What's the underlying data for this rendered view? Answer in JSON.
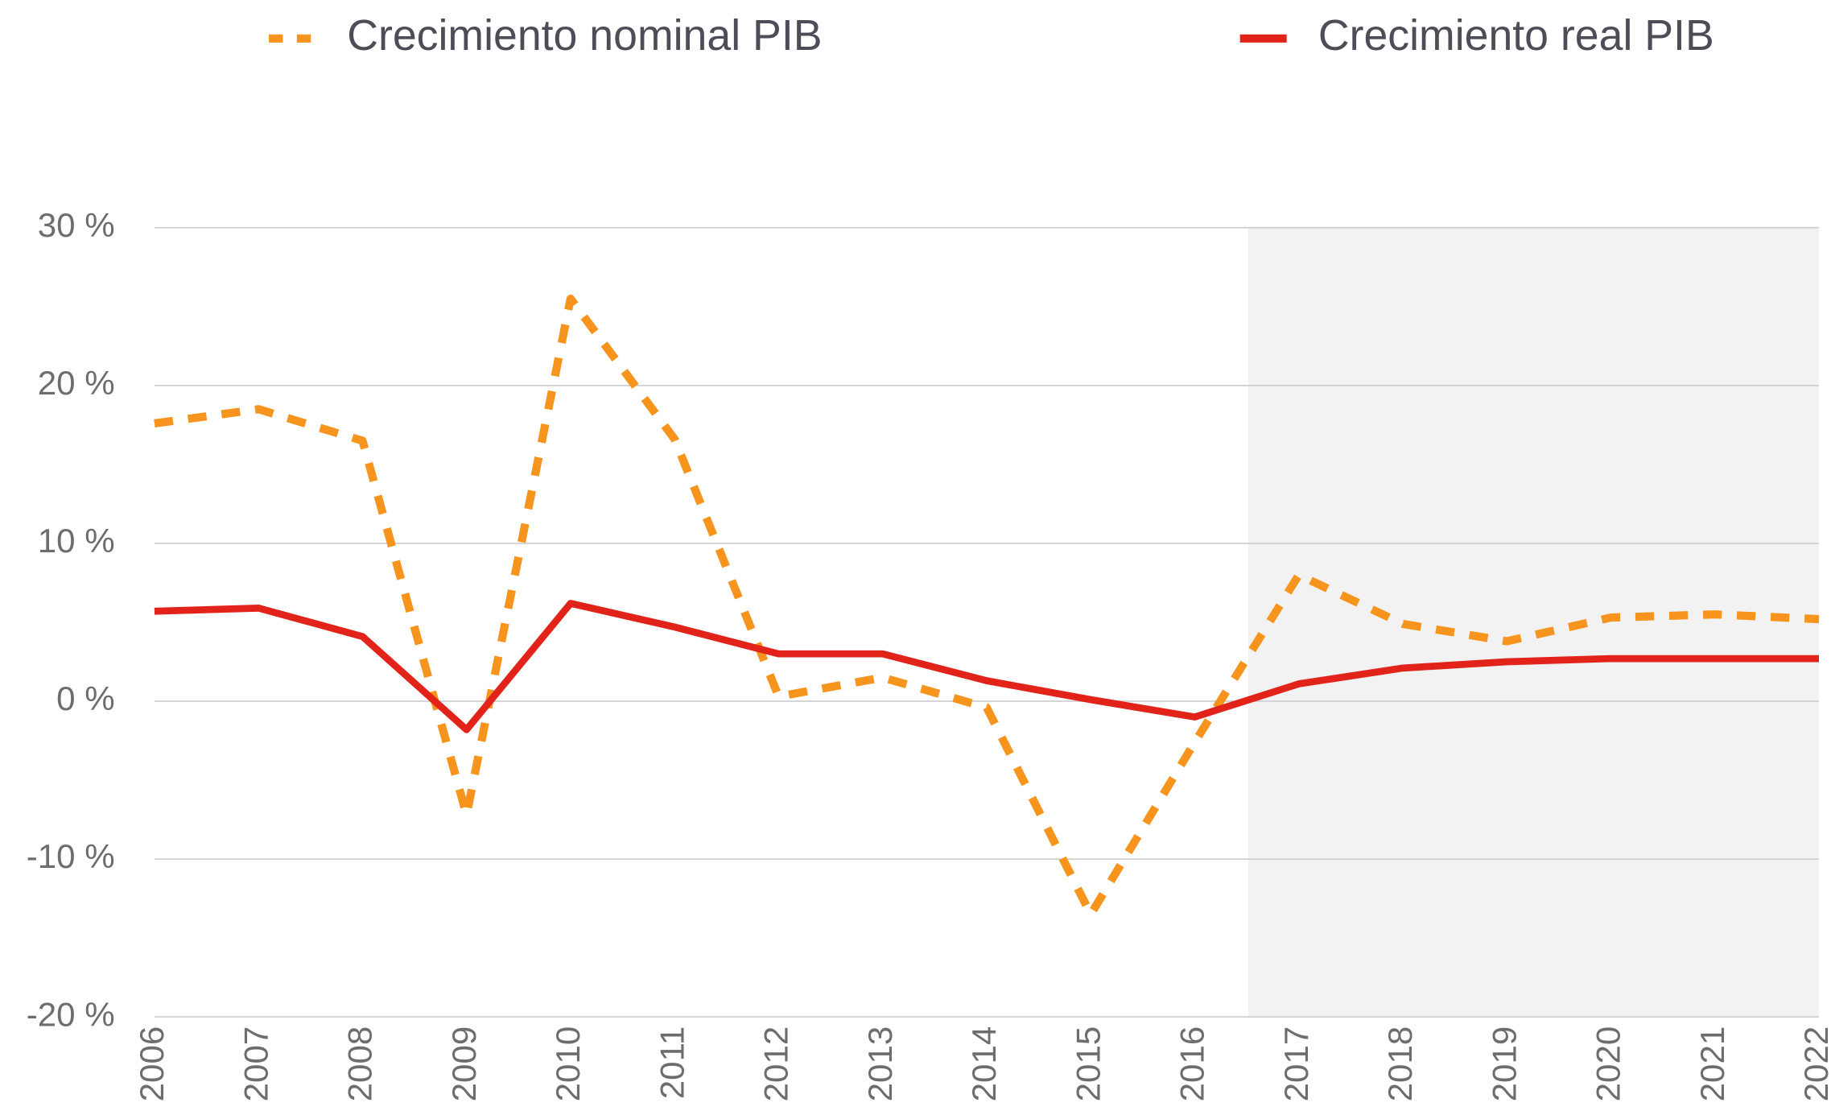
{
  "chart_data": {
    "type": "line",
    "x": [
      2006,
      2007,
      2008,
      2009,
      2010,
      2011,
      2012,
      2013,
      2014,
      2015,
      2016,
      2017,
      2018,
      2019,
      2020,
      2021,
      2022
    ],
    "xlim": [
      2006,
      2022
    ],
    "xticks": [
      2006,
      2007,
      2008,
      2009,
      2010,
      2011,
      2012,
      2013,
      2014,
      2015,
      2016,
      2017,
      2018,
      2019,
      2020,
      2021,
      2022
    ],
    "ylim": [
      -20,
      30
    ],
    "yticks": [
      {
        "value": -20,
        "label": "-20 %"
      },
      {
        "value": -10,
        "label": "-10 %"
      },
      {
        "value": 0,
        "label": "0 %"
      },
      {
        "value": 10,
        "label": "10 %"
      },
      {
        "value": 20,
        "label": "20 %"
      },
      {
        "value": 30,
        "label": "30 %"
      }
    ],
    "grid": true,
    "legend": "top",
    "series": [
      {
        "name": "Crecimiento nominal PIB",
        "color": "#f7941d",
        "dashed": true,
        "values": [
          17.6,
          18.5,
          16.5,
          -7.2,
          25.5,
          16.6,
          0.3,
          1.5,
          -0.4,
          -13.5,
          -2.6,
          8.0,
          4.9,
          3.8,
          5.3,
          5.5,
          5.2
        ]
      },
      {
        "name": "Crecimiento real PIB",
        "color": "#e2231a",
        "dashed": false,
        "values": [
          5.7,
          5.9,
          4.1,
          -1.8,
          6.2,
          4.7,
          3.0,
          3.0,
          1.3,
          0.1,
          -1.0,
          1.1,
          2.1,
          2.5,
          2.7,
          2.7,
          2.7
        ]
      }
    ]
  }
}
